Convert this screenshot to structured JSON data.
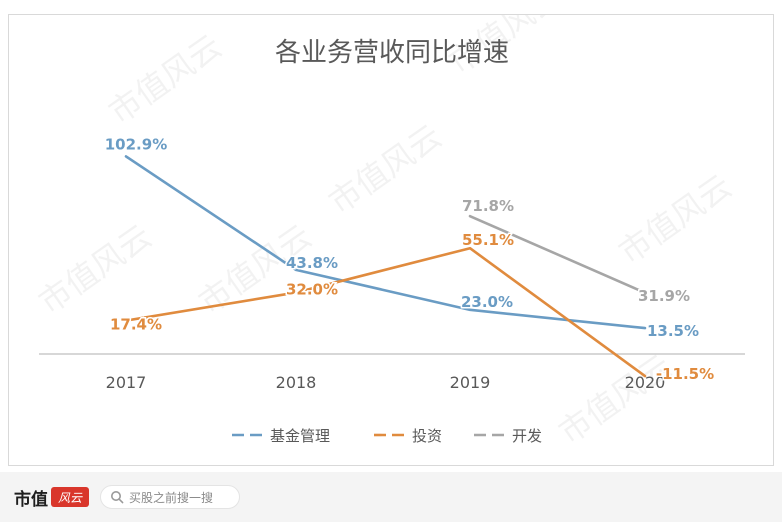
{
  "chart_data": {
    "type": "line",
    "title": "各业务营收同比增速",
    "categories": [
      "2017",
      "2018",
      "2019",
      "2020"
    ],
    "series": [
      {
        "name": "基金管理",
        "color": "#6a9cc4",
        "values": [
          102.9,
          43.8,
          23.0,
          13.5
        ],
        "labels": [
          "102.9%",
          "43.8%",
          "23.0%",
          "13.5%"
        ]
      },
      {
        "name": "投资",
        "color": "#e08b3e",
        "values": [
          17.4,
          32.0,
          55.1,
          -11.5
        ],
        "labels": [
          "17.4%",
          "32.0%",
          "55.1%",
          "-11.5%"
        ]
      },
      {
        "name": "开发",
        "color": "#a6a6a6",
        "values": [
          null,
          null,
          71.8,
          31.9
        ],
        "labels": [
          null,
          null,
          "71.8%",
          "31.9%"
        ]
      }
    ],
    "ylim": [
      -15,
      115
    ],
    "grid": false,
    "legend_position": "bottom"
  },
  "watermark": "市值风云",
  "footer": {
    "brand": "市值",
    "brand_badge": "风云",
    "search_placeholder": "买股之前搜一搜"
  }
}
